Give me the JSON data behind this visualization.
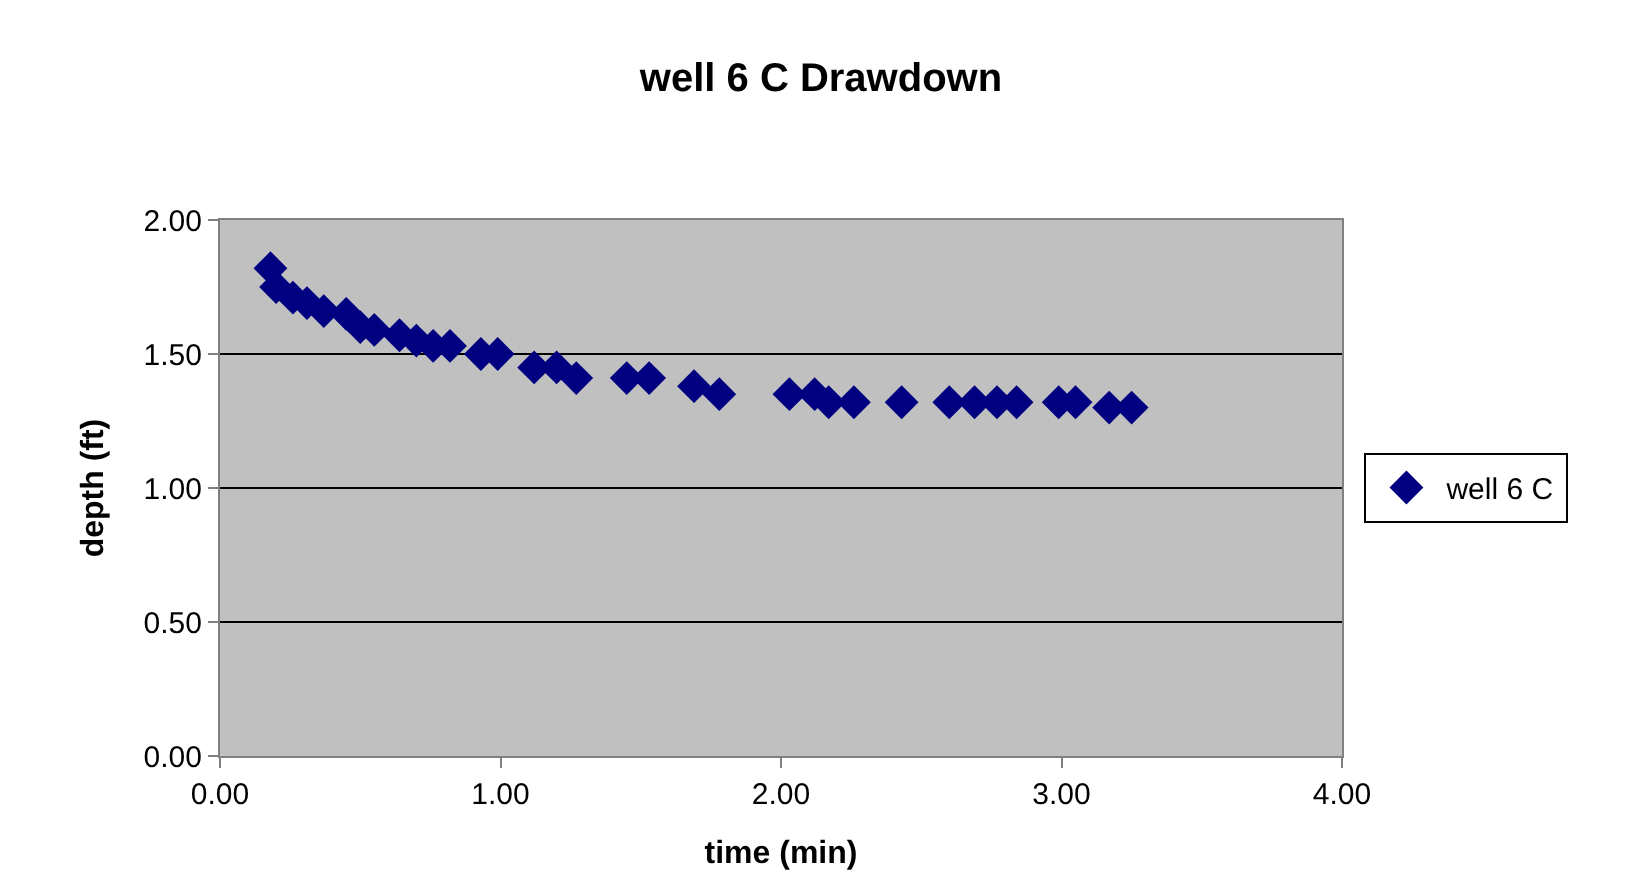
{
  "chart_data": {
    "type": "scatter",
    "title": "well 6 C Drawdown",
    "xlabel": "time (min)",
    "ylabel": "depth (ft)",
    "xlim": [
      0,
      4
    ],
    "xticks": [
      {
        "value": 0,
        "label": "0.00"
      },
      {
        "value": 1,
        "label": "1.00"
      },
      {
        "value": 2,
        "label": "2.00"
      },
      {
        "value": 3,
        "label": "3.00"
      },
      {
        "value": 4,
        "label": "4.00"
      }
    ],
    "ylim": [
      0,
      2
    ],
    "yticks": [
      {
        "value": 0,
        "label": "0.00"
      },
      {
        "value": 0.5,
        "label": "0.50"
      },
      {
        "value": 1,
        "label": "1.00"
      },
      {
        "value": 1.5,
        "label": "1.50"
      },
      {
        "value": 2,
        "label": "2.00"
      }
    ],
    "grid": "y",
    "legend": "right",
    "marker": "diamond",
    "series": [
      {
        "name": "well 6 C",
        "color": "#000080",
        "x": [
          0.18,
          0.2,
          0.26,
          0.31,
          0.37,
          0.45,
          0.5,
          0.55,
          0.64,
          0.7,
          0.76,
          0.82,
          0.93,
          0.99,
          1.12,
          1.2,
          1.27,
          1.45,
          1.53,
          1.69,
          1.78,
          2.03,
          2.12,
          2.17,
          2.26,
          2.43,
          2.6,
          2.69,
          2.77,
          2.84,
          2.99,
          3.05,
          3.17,
          3.25
        ],
        "values": [
          1.82,
          1.75,
          1.71,
          1.69,
          1.66,
          1.65,
          1.6,
          1.59,
          1.57,
          1.55,
          1.53,
          1.53,
          1.5,
          1.5,
          1.45,
          1.45,
          1.41,
          1.41,
          1.41,
          1.38,
          1.35,
          1.35,
          1.35,
          1.32,
          1.32,
          1.32,
          1.32,
          1.32,
          1.32,
          1.32,
          1.32,
          1.32,
          1.3,
          1.3
        ]
      }
    ]
  }
}
